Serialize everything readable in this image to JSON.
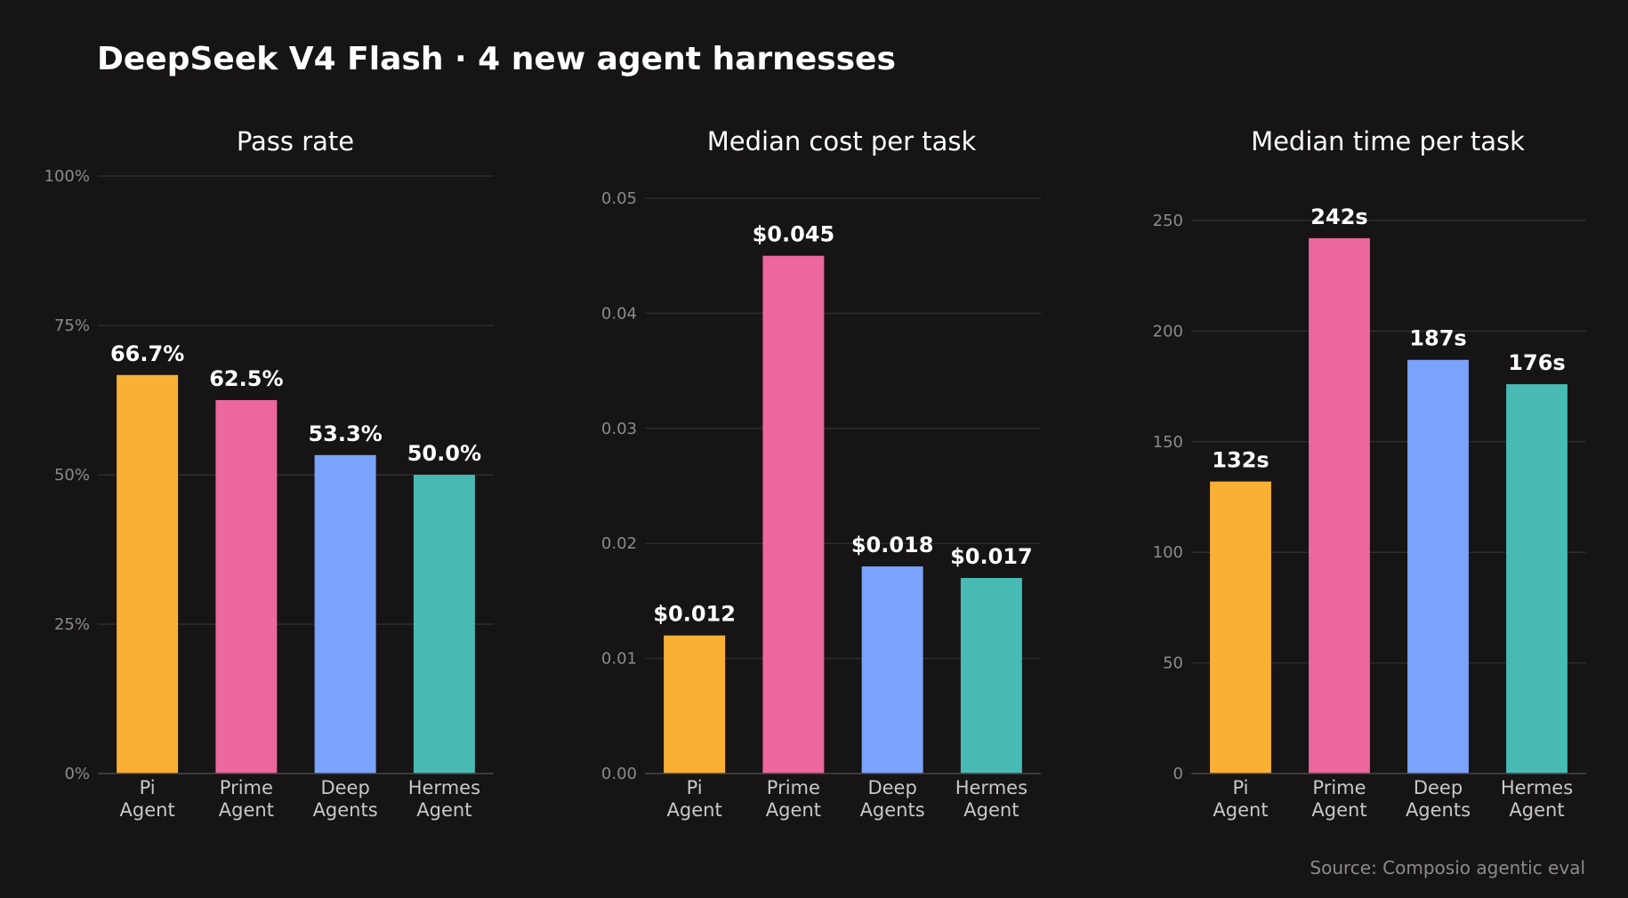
{
  "title": "DeepSeek V4 Flash · 4 new agent harnesses",
  "source": "Source: Composio agentic eval",
  "colors": {
    "background": "#171415",
    "grid": "#2f2c2d",
    "axis": "#4a4748",
    "tick_text": "#8c8a8b",
    "category_text": "#c9c7c8",
    "bars": [
      "#f9b035",
      "#eb679c",
      "#7ba3fc",
      "#47bab3"
    ]
  },
  "chart_data": [
    {
      "type": "bar",
      "title": "Pass rate",
      "categories": [
        [
          "Pi",
          "Agent"
        ],
        [
          "Prime",
          "Agent"
        ],
        [
          "Deep",
          "Agents"
        ],
        [
          "Hermes",
          "Agent"
        ]
      ],
      "values": [
        66.7,
        62.5,
        53.3,
        50.0
      ],
      "value_labels": [
        "66.7%",
        "62.5%",
        "53.3%",
        "50.0%"
      ],
      "ylim": [
        0,
        100
      ],
      "yticks": [
        0,
        25,
        50,
        75,
        100
      ],
      "ytick_labels": [
        "0%",
        "25%",
        "50%",
        "75%",
        "100%"
      ],
      "grid": true
    },
    {
      "type": "bar",
      "title": "Median cost per task",
      "categories": [
        [
          "Pi",
          "Agent"
        ],
        [
          "Prime",
          "Agent"
        ],
        [
          "Deep",
          "Agents"
        ],
        [
          "Hermes",
          "Agent"
        ]
      ],
      "values": [
        0.012,
        0.045,
        0.018,
        0.017
      ],
      "value_labels": [
        "$0.012",
        "$0.045",
        "$0.018",
        "$0.017"
      ],
      "ylim": [
        0,
        0.05
      ],
      "yticks": [
        0,
        0.01,
        0.02,
        0.03,
        0.04,
        0.05
      ],
      "ytick_labels": [
        "0.00",
        "0.01",
        "0.02",
        "0.03",
        "0.04",
        "0.05"
      ],
      "grid": true
    },
    {
      "type": "bar",
      "title": "Median time per task",
      "categories": [
        [
          "Pi",
          "Agent"
        ],
        [
          "Prime",
          "Agent"
        ],
        [
          "Deep",
          "Agents"
        ],
        [
          "Hermes",
          "Agent"
        ]
      ],
      "values": [
        132,
        242,
        187,
        176
      ],
      "value_labels": [
        "132s",
        "242s",
        "187s",
        "176s"
      ],
      "ylim": [
        0,
        250
      ],
      "yticks": [
        0,
        50,
        100,
        150,
        200,
        250
      ],
      "ytick_labels": [
        "0",
        "50",
        "100",
        "150",
        "200",
        "250"
      ],
      "grid": true
    }
  ]
}
